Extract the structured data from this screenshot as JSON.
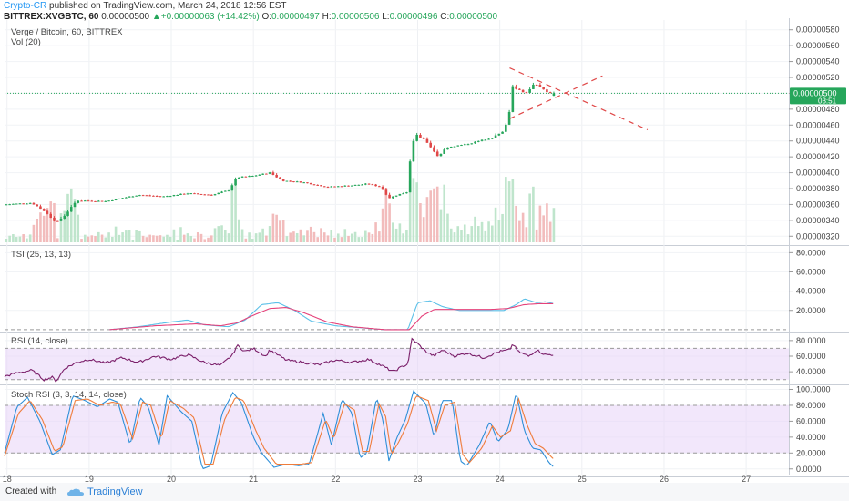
{
  "header": {
    "author": "Crypto-CR",
    "published": " published on TradingView.com, March 24, 2018 12:56 EST",
    "symbol": "BITTREX:XVGBTC, 60",
    "last": "0.00000500",
    "change_arrow": "▲",
    "change": "+0.00000063 (+14.42%)",
    "open_label": "O:",
    "open": "0.00000497",
    "high_label": "H:",
    "high": "0.00000506",
    "low_label": "L:",
    "low": "0.00000496",
    "close_label": "C:",
    "close": "0.00000500"
  },
  "footer": {
    "created_with": "Created with",
    "brand": "TradingView"
  },
  "colors": {
    "up": "#26a65b",
    "down": "#e04848",
    "tsi": "#5bc0e8",
    "tsi_signal": "#e5427a",
    "rsi": "#7b1f6a",
    "stoch_k": "#2e8fd8",
    "stoch_d": "#ef7c3b",
    "band": "#e8d3f7",
    "trend": "#e04848",
    "price_tag": "#26a65b"
  },
  "chart_data": [
    {
      "type": "candlestick",
      "title": "Verge / Bitcoin, 60, BITTREX",
      "volume_label": "Vol (20)",
      "y_ticks": [
        "0.00000580",
        "0.00000560",
        "0.00000540",
        "0.00000520",
        "0.00000500",
        "0.00000480",
        "0.00000460",
        "0.00000440",
        "0.00000420",
        "0.00000400",
        "0.00000380",
        "0.00000360",
        "0.00000340",
        "0.00000320"
      ],
      "ylim": [
        3.1e-06,
        5.9e-06
      ],
      "last_price_tag": "0.00000500",
      "countdown": "03:51",
      "x_ticks": [
        "18",
        "19",
        "20",
        "21",
        "22",
        "23",
        "24",
        "25",
        "26",
        "27"
      ],
      "x_tick_positions_day": [
        18,
        19,
        20,
        21,
        22,
        23,
        24,
        25,
        26,
        27
      ],
      "xlim_day": [
        17.97,
        27.52
      ],
      "data_end_day": 24.66,
      "price_path_key_points": [
        [
          17.97,
          3.6e-06
        ],
        [
          18.3,
          3.62e-06
        ],
        [
          18.45,
          3.52e-06
        ],
        [
          18.6,
          3.37e-06
        ],
        [
          18.7,
          3.46e-06
        ],
        [
          18.85,
          3.65e-06
        ],
        [
          19.2,
          3.64e-06
        ],
        [
          19.6,
          3.72e-06
        ],
        [
          19.9,
          3.7e-06
        ],
        [
          20.2,
          3.74e-06
        ],
        [
          20.5,
          3.72e-06
        ],
        [
          20.7,
          3.78e-06
        ],
        [
          20.8,
          3.94e-06
        ],
        [
          21.0,
          3.96e-06
        ],
        [
          21.2,
          4e-06
        ],
        [
          21.35,
          3.9e-06
        ],
        [
          21.6,
          3.88e-06
        ],
        [
          21.9,
          3.82e-06
        ],
        [
          22.2,
          3.84e-06
        ],
        [
          22.4,
          3.86e-06
        ],
        [
          22.55,
          3.82e-06
        ],
        [
          22.65,
          3.68e-06
        ],
        [
          22.75,
          3.72e-06
        ],
        [
          22.88,
          3.76e-06
        ],
        [
          22.92,
          4.32e-06
        ],
        [
          22.98,
          4.48e-06
        ],
        [
          23.1,
          4.4e-06
        ],
        [
          23.25,
          4.2e-06
        ],
        [
          23.35,
          4.32e-06
        ],
        [
          23.6,
          4.36e-06
        ],
        [
          23.9,
          4.44e-06
        ],
        [
          24.05,
          4.52e-06
        ],
        [
          24.12,
          4.78e-06
        ],
        [
          24.15,
          5.1e-06
        ],
        [
          24.2,
          5.06e-06
        ],
        [
          24.32,
          5e-06
        ],
        [
          24.42,
          5.12e-06
        ],
        [
          24.52,
          5.06e-06
        ],
        [
          24.6,
          5e-06
        ],
        [
          24.66,
          5e-06
        ]
      ],
      "last_candle": {
        "open": 4.97e-06,
        "high": 5.06e-06,
        "low": 4.96e-06,
        "close": 5e-06
      },
      "trendlines": [
        {
          "from": [
            24.12,
            5.32e-06
          ],
          "to": [
            25.8,
            4.54e-06
          ]
        },
        {
          "from": [
            24.12,
            4.68e-06
          ],
          "to": [
            25.25,
            5.22e-06
          ]
        }
      ]
    },
    {
      "type": "line",
      "title": "TSI (25, 13, 13)",
      "y_ticks": [
        "80.0000",
        "60.0000",
        "40.0000",
        "20.0000"
      ],
      "ylim": [
        -2,
        86
      ],
      "series_key_points": [
        {
          "values": [
            [
              19.25,
              0
            ],
            [
              19.6,
              3
            ],
            [
              20.0,
              8
            ],
            [
              20.2,
              10
            ],
            [
              20.4,
              5
            ],
            [
              20.7,
              3
            ],
            [
              20.9,
              10
            ],
            [
              21.1,
              26
            ],
            [
              21.3,
              28
            ],
            [
              21.5,
              20
            ],
            [
              21.7,
              9
            ],
            [
              22.0,
              4
            ],
            [
              22.3,
              2
            ],
            [
              22.6,
              0
            ],
            [
              22.88,
              0
            ],
            [
              22.93,
              12
            ],
            [
              23.0,
              28
            ],
            [
              23.15,
              30
            ],
            [
              23.3,
              24
            ],
            [
              23.5,
              20
            ],
            [
              23.8,
              20
            ],
            [
              24.05,
              20
            ],
            [
              24.2,
              26
            ],
            [
              24.3,
              32
            ],
            [
              24.45,
              28
            ],
            [
              24.55,
              29
            ],
            [
              24.66,
              27
            ]
          ]
        },
        {
          "values": [
            [
              19.25,
              0
            ],
            [
              19.8,
              4
            ],
            [
              20.3,
              6
            ],
            [
              20.6,
              4
            ],
            [
              20.8,
              7
            ],
            [
              21.0,
              15
            ],
            [
              21.2,
              22
            ],
            [
              21.4,
              23
            ],
            [
              21.6,
              18
            ],
            [
              21.9,
              8
            ],
            [
              22.2,
              3
            ],
            [
              22.6,
              0
            ],
            [
              22.9,
              0
            ],
            [
              23.05,
              14
            ],
            [
              23.2,
              21
            ],
            [
              23.5,
              21
            ],
            [
              23.9,
              21
            ],
            [
              24.1,
              22
            ],
            [
              24.3,
              26
            ],
            [
              24.5,
              27
            ],
            [
              24.66,
              27
            ]
          ]
        }
      ]
    },
    {
      "type": "line",
      "title": "RSI (14, close)",
      "y_ticks": [
        "80.0000",
        "60.0000",
        "40.0000"
      ],
      "ylim": [
        25,
        88
      ],
      "band": [
        30,
        70
      ],
      "series_key_points": [
        {
          "values": [
            [
              17.97,
              34
            ],
            [
              18.1,
              38
            ],
            [
              18.3,
              42
            ],
            [
              18.45,
              30
            ],
            [
              18.55,
              33
            ],
            [
              18.6,
              28
            ],
            [
              18.7,
              44
            ],
            [
              18.85,
              52
            ],
            [
              19.0,
              56
            ],
            [
              19.2,
              51
            ],
            [
              19.4,
              58
            ],
            [
              19.6,
              52
            ],
            [
              19.8,
              60
            ],
            [
              20.0,
              56
            ],
            [
              20.2,
              62
            ],
            [
              20.4,
              52
            ],
            [
              20.6,
              48
            ],
            [
              20.75,
              62
            ],
            [
              20.8,
              74
            ],
            [
              20.9,
              66
            ],
            [
              21.0,
              70
            ],
            [
              21.15,
              60
            ],
            [
              21.2,
              68
            ],
            [
              21.4,
              55
            ],
            [
              21.6,
              52
            ],
            [
              21.8,
              49
            ],
            [
              22.0,
              55
            ],
            [
              22.2,
              52
            ],
            [
              22.4,
              56
            ],
            [
              22.6,
              46
            ],
            [
              22.7,
              40
            ],
            [
              22.8,
              46
            ],
            [
              22.88,
              50
            ],
            [
              22.93,
              82
            ],
            [
              23.0,
              76
            ],
            [
              23.1,
              66
            ],
            [
              23.2,
              60
            ],
            [
              23.3,
              68
            ],
            [
              23.45,
              60
            ],
            [
              23.6,
              64
            ],
            [
              23.8,
              58
            ],
            [
              24.0,
              66
            ],
            [
              24.12,
              68
            ],
            [
              24.16,
              76
            ],
            [
              24.22,
              66
            ],
            [
              24.35,
              60
            ],
            [
              24.45,
              68
            ],
            [
              24.55,
              62
            ],
            [
              24.66,
              62
            ]
          ]
        }
      ]
    },
    {
      "type": "line",
      "title": "Stoch RSI (3, 3, 14, 14, close)",
      "y_ticks": [
        "100.0000",
        "80.0000",
        "60.0000",
        "40.0000",
        "20.0000",
        "0.0000"
      ],
      "ylim": [
        -6,
        104
      ],
      "band": [
        20,
        80
      ],
      "series_key_points": [
        {
          "values": [
            [
              17.97,
              20
            ],
            [
              18.12,
              78
            ],
            [
              18.25,
              90
            ],
            [
              18.4,
              60
            ],
            [
              18.55,
              18
            ],
            [
              18.65,
              24
            ],
            [
              18.8,
              92
            ],
            [
              18.95,
              86
            ],
            [
              19.1,
              78
            ],
            [
              19.25,
              88
            ],
            [
              19.35,
              84
            ],
            [
              19.5,
              30
            ],
            [
              19.62,
              90
            ],
            [
              19.72,
              78
            ],
            [
              19.85,
              30
            ],
            [
              19.95,
              92
            ],
            [
              20.12,
              72
            ],
            [
              20.25,
              60
            ],
            [
              20.38,
              0
            ],
            [
              20.48,
              4
            ],
            [
              20.62,
              70
            ],
            [
              20.75,
              96
            ],
            [
              20.85,
              84
            ],
            [
              21.0,
              40
            ],
            [
              21.1,
              20
            ],
            [
              21.25,
              2
            ],
            [
              21.4,
              6
            ],
            [
              21.55,
              4
            ],
            [
              21.68,
              6
            ],
            [
              21.85,
              70
            ],
            [
              21.95,
              30
            ],
            [
              22.08,
              88
            ],
            [
              22.2,
              70
            ],
            [
              22.3,
              14
            ],
            [
              22.38,
              20
            ],
            [
              22.5,
              90
            ],
            [
              22.58,
              60
            ],
            [
              22.65,
              10
            ],
            [
              22.75,
              40
            ],
            [
              22.85,
              62
            ],
            [
              22.95,
              98
            ],
            [
              23.1,
              82
            ],
            [
              23.2,
              40
            ],
            [
              23.3,
              86
            ],
            [
              23.42,
              86
            ],
            [
              23.52,
              10
            ],
            [
              23.6,
              4
            ],
            [
              23.75,
              30
            ],
            [
              23.88,
              60
            ],
            [
              23.98,
              34
            ],
            [
              24.1,
              50
            ],
            [
              24.2,
              96
            ],
            [
              24.3,
              48
            ],
            [
              24.4,
              26
            ],
            [
              24.5,
              24
            ],
            [
              24.6,
              8
            ],
            [
              24.66,
              2
            ]
          ]
        },
        {
          "values": [
            [
              17.97,
              16
            ],
            [
              18.14,
              70
            ],
            [
              18.28,
              86
            ],
            [
              18.43,
              62
            ],
            [
              18.58,
              22
            ],
            [
              18.68,
              28
            ],
            [
              18.83,
              86
            ],
            [
              18.98,
              88
            ],
            [
              19.13,
              80
            ],
            [
              19.28,
              84
            ],
            [
              19.38,
              82
            ],
            [
              19.53,
              38
            ],
            [
              19.65,
              84
            ],
            [
              19.75,
              80
            ],
            [
              19.88,
              38
            ],
            [
              19.98,
              86
            ],
            [
              20.15,
              76
            ],
            [
              20.28,
              64
            ],
            [
              20.41,
              6
            ],
            [
              20.51,
              6
            ],
            [
              20.65,
              62
            ],
            [
              20.78,
              90
            ],
            [
              20.88,
              86
            ],
            [
              21.03,
              48
            ],
            [
              21.13,
              26
            ],
            [
              21.28,
              6
            ],
            [
              21.43,
              6
            ],
            [
              21.58,
              6
            ],
            [
              21.71,
              8
            ],
            [
              21.88,
              62
            ],
            [
              21.98,
              38
            ],
            [
              22.11,
              82
            ],
            [
              22.23,
              74
            ],
            [
              22.33,
              22
            ],
            [
              22.41,
              22
            ],
            [
              22.53,
              82
            ],
            [
              22.61,
              66
            ],
            [
              22.68,
              18
            ],
            [
              22.78,
              36
            ],
            [
              22.88,
              58
            ],
            [
              22.98,
              92
            ],
            [
              23.13,
              86
            ],
            [
              23.23,
              48
            ],
            [
              23.33,
              80
            ],
            [
              23.45,
              84
            ],
            [
              23.55,
              18
            ],
            [
              23.63,
              8
            ],
            [
              23.78,
              26
            ],
            [
              23.91,
              54
            ],
            [
              24.01,
              40
            ],
            [
              24.13,
              48
            ],
            [
              24.23,
              88
            ],
            [
              24.33,
              56
            ],
            [
              24.43,
              32
            ],
            [
              24.53,
              26
            ],
            [
              24.62,
              16
            ],
            [
              24.66,
              12
            ]
          ]
        }
      ]
    }
  ]
}
